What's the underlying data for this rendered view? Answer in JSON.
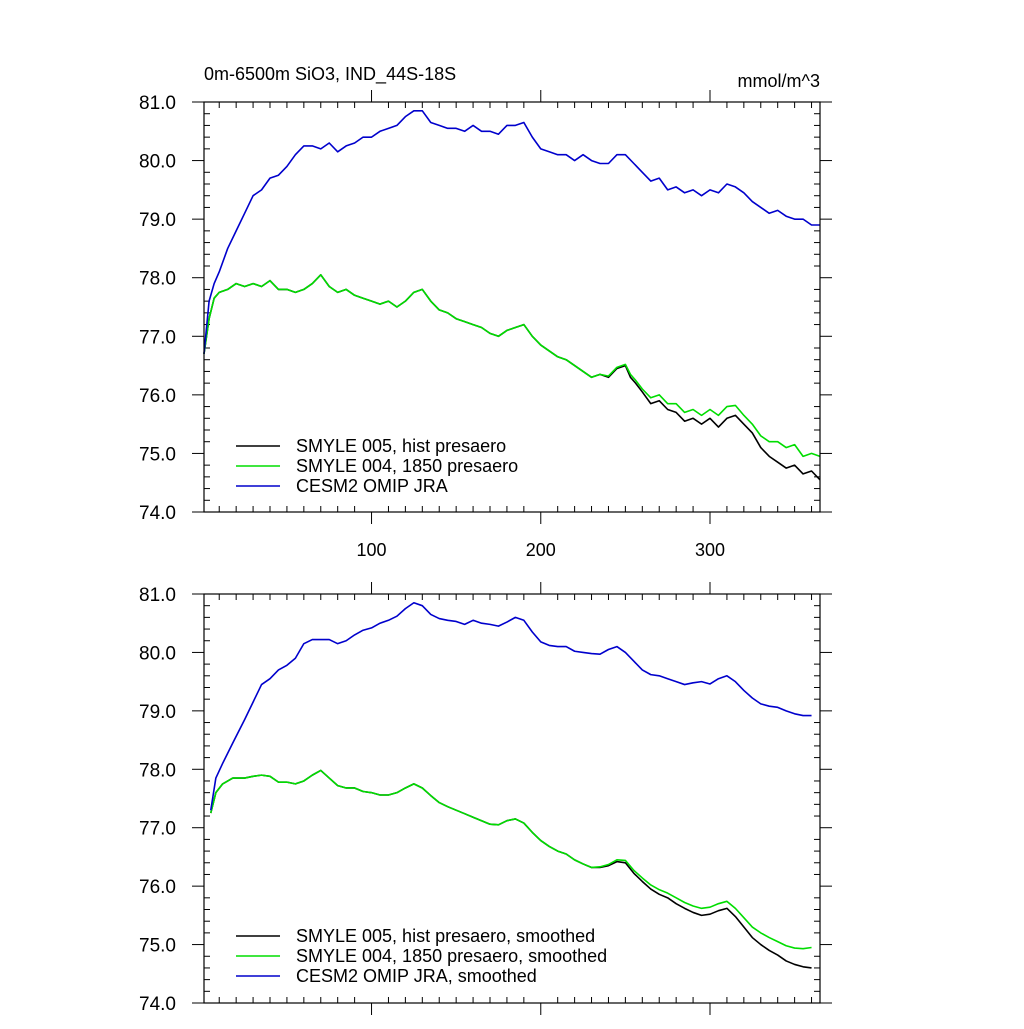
{
  "chart_data": [
    {
      "type": "line",
      "title": "0m-6500m SiO3, IND_44S-18S",
      "units": "mmol/m^3",
      "xlim": [
        1,
        365
      ],
      "ylim": [
        74.0,
        81.0
      ],
      "x_ticks": [
        100,
        200,
        300
      ],
      "y_ticks": [
        "74.0",
        "75.0",
        "76.0",
        "77.0",
        "78.0",
        "79.0",
        "80.0",
        "81.0"
      ],
      "legend_position": "bottom-left",
      "series": [
        {
          "name": "SMYLE 005, hist presaero",
          "color": "#000000",
          "x": [
            1,
            4,
            7,
            10,
            15,
            20,
            25,
            30,
            35,
            40,
            45,
            50,
            55,
            60,
            65,
            70,
            75,
            80,
            85,
            90,
            95,
            100,
            105,
            110,
            115,
            120,
            125,
            130,
            135,
            140,
            145,
            150,
            155,
            160,
            165,
            170,
            175,
            180,
            185,
            190,
            195,
            200,
            205,
            210,
            215,
            220,
            225,
            230,
            235,
            240,
            245,
            250,
            253,
            256,
            260,
            265,
            270,
            275,
            280,
            285,
            290,
            295,
            300,
            305,
            310,
            315,
            320,
            325,
            330,
            335,
            340,
            345,
            350,
            355,
            360,
            365
          ],
          "y": [
            76.7,
            77.3,
            77.65,
            77.75,
            77.8,
            77.9,
            77.85,
            77.9,
            77.85,
            77.95,
            77.8,
            77.8,
            77.75,
            77.8,
            77.9,
            78.05,
            77.85,
            77.75,
            77.8,
            77.7,
            77.65,
            77.6,
            77.55,
            77.6,
            77.5,
            77.6,
            77.75,
            77.8,
            77.6,
            77.45,
            77.4,
            77.3,
            77.25,
            77.2,
            77.15,
            77.05,
            77.0,
            77.1,
            77.15,
            77.2,
            77.0,
            76.85,
            76.75,
            76.65,
            76.6,
            76.5,
            76.4,
            76.3,
            76.35,
            76.3,
            76.45,
            76.5,
            76.3,
            76.2,
            76.05,
            75.85,
            75.9,
            75.75,
            75.7,
            75.55,
            75.6,
            75.5,
            75.6,
            75.45,
            75.6,
            75.65,
            75.5,
            75.35,
            75.1,
            74.95,
            74.85,
            74.75,
            74.8,
            74.65,
            74.7,
            74.55
          ]
        },
        {
          "name": "SMYLE 004, 1850 presaero",
          "color": "#00dd00",
          "x": [
            1,
            4,
            7,
            10,
            15,
            20,
            25,
            30,
            35,
            40,
            45,
            50,
            55,
            60,
            65,
            70,
            75,
            80,
            85,
            90,
            95,
            100,
            105,
            110,
            115,
            120,
            125,
            130,
            135,
            140,
            145,
            150,
            155,
            160,
            165,
            170,
            175,
            180,
            185,
            190,
            195,
            200,
            205,
            210,
            215,
            220,
            225,
            230,
            235,
            240,
            245,
            250,
            253,
            256,
            260,
            265,
            270,
            275,
            280,
            285,
            290,
            295,
            300,
            305,
            310,
            315,
            320,
            325,
            330,
            335,
            340,
            345,
            350,
            355,
            360,
            365
          ],
          "y": [
            76.7,
            77.3,
            77.65,
            77.75,
            77.8,
            77.9,
            77.85,
            77.9,
            77.85,
            77.95,
            77.8,
            77.8,
            77.75,
            77.8,
            77.9,
            78.05,
            77.85,
            77.75,
            77.8,
            77.7,
            77.65,
            77.6,
            77.55,
            77.6,
            77.5,
            77.6,
            77.75,
            77.8,
            77.6,
            77.45,
            77.4,
            77.3,
            77.25,
            77.2,
            77.15,
            77.05,
            77.0,
            77.1,
            77.15,
            77.2,
            77.0,
            76.85,
            76.75,
            76.65,
            76.6,
            76.5,
            76.4,
            76.3,
            76.35,
            76.32,
            76.47,
            76.52,
            76.35,
            76.25,
            76.1,
            75.95,
            76.0,
            75.85,
            75.85,
            75.7,
            75.75,
            75.65,
            75.75,
            75.65,
            75.8,
            75.82,
            75.65,
            75.5,
            75.3,
            75.2,
            75.2,
            75.1,
            75.15,
            74.95,
            75.0,
            74.95
          ]
        },
        {
          "name": "CESM2 OMIP JRA",
          "color": "#0000cc",
          "x": [
            1,
            4,
            7,
            10,
            15,
            20,
            25,
            30,
            35,
            40,
            45,
            50,
            55,
            60,
            65,
            70,
            75,
            80,
            85,
            90,
            95,
            100,
            105,
            110,
            115,
            120,
            125,
            130,
            135,
            140,
            145,
            150,
            155,
            160,
            165,
            170,
            175,
            180,
            185,
            190,
            195,
            200,
            205,
            210,
            215,
            220,
            225,
            230,
            235,
            240,
            245,
            250,
            255,
            260,
            265,
            270,
            275,
            280,
            285,
            290,
            295,
            300,
            305,
            310,
            315,
            320,
            325,
            330,
            335,
            340,
            345,
            350,
            355,
            360,
            365
          ],
          "y": [
            76.7,
            77.6,
            77.9,
            78.1,
            78.5,
            78.8,
            79.1,
            79.4,
            79.5,
            79.7,
            79.75,
            79.9,
            80.1,
            80.25,
            80.25,
            80.2,
            80.3,
            80.15,
            80.25,
            80.3,
            80.4,
            80.4,
            80.5,
            80.55,
            80.6,
            80.75,
            80.85,
            80.85,
            80.65,
            80.6,
            80.55,
            80.55,
            80.5,
            80.6,
            80.5,
            80.5,
            80.45,
            80.6,
            80.6,
            80.65,
            80.4,
            80.2,
            80.15,
            80.1,
            80.1,
            80.0,
            80.1,
            80.0,
            79.95,
            79.95,
            80.1,
            80.1,
            79.95,
            79.8,
            79.65,
            79.7,
            79.5,
            79.55,
            79.45,
            79.5,
            79.4,
            79.5,
            79.45,
            79.6,
            79.55,
            79.45,
            79.3,
            79.2,
            79.1,
            79.15,
            79.05,
            79.0,
            79.0,
            78.9,
            78.9
          ]
        }
      ]
    },
    {
      "type": "line",
      "xlim": [
        1,
        365
      ],
      "ylim": [
        74.0,
        81.0
      ],
      "x_ticks": [
        100,
        200,
        300
      ],
      "y_ticks": [
        "74.0",
        "75.0",
        "76.0",
        "77.0",
        "78.0",
        "79.0",
        "80.0",
        "81.0"
      ],
      "legend_position": "bottom-left",
      "series": [
        {
          "name": "SMYLE 005, hist presaero, smoothed",
          "color": "#000000",
          "x": [
            5,
            8,
            12,
            18,
            25,
            30,
            35,
            40,
            45,
            50,
            55,
            60,
            65,
            70,
            75,
            80,
            85,
            90,
            95,
            100,
            105,
            110,
            115,
            120,
            125,
            130,
            135,
            140,
            145,
            150,
            155,
            160,
            165,
            170,
            175,
            180,
            185,
            190,
            195,
            200,
            205,
            210,
            215,
            220,
            225,
            230,
            235,
            240,
            245,
            250,
            255,
            260,
            265,
            270,
            275,
            280,
            285,
            290,
            295,
            300,
            305,
            310,
            315,
            320,
            325,
            330,
            335,
            340,
            345,
            350,
            355,
            360
          ],
          "y": [
            77.25,
            77.6,
            77.75,
            77.85,
            77.85,
            77.88,
            77.9,
            77.88,
            77.78,
            77.78,
            77.75,
            77.8,
            77.9,
            77.98,
            77.85,
            77.72,
            77.68,
            77.68,
            77.62,
            77.6,
            77.56,
            77.56,
            77.6,
            77.68,
            77.75,
            77.68,
            77.55,
            77.43,
            77.36,
            77.3,
            77.24,
            77.18,
            77.12,
            77.06,
            77.05,
            77.12,
            77.15,
            77.08,
            76.92,
            76.78,
            76.68,
            76.6,
            76.55,
            76.45,
            76.38,
            76.32,
            76.32,
            76.35,
            76.42,
            76.4,
            76.22,
            76.08,
            75.95,
            75.86,
            75.8,
            75.7,
            75.62,
            75.55,
            75.5,
            75.52,
            75.58,
            75.62,
            75.48,
            75.3,
            75.12,
            75.0,
            74.9,
            74.82,
            74.72,
            74.66,
            74.62,
            74.6
          ]
        },
        {
          "name": "SMYLE 004, 1850 presaero, smoothed",
          "color": "#00dd00",
          "x": [
            5,
            8,
            12,
            18,
            25,
            30,
            35,
            40,
            45,
            50,
            55,
            60,
            65,
            70,
            75,
            80,
            85,
            90,
            95,
            100,
            105,
            110,
            115,
            120,
            125,
            130,
            135,
            140,
            145,
            150,
            155,
            160,
            165,
            170,
            175,
            180,
            185,
            190,
            195,
            200,
            205,
            210,
            215,
            220,
            225,
            230,
            235,
            240,
            245,
            250,
            255,
            260,
            265,
            270,
            275,
            280,
            285,
            290,
            295,
            300,
            305,
            310,
            315,
            320,
            325,
            330,
            335,
            340,
            345,
            350,
            355,
            360
          ],
          "y": [
            77.25,
            77.6,
            77.75,
            77.85,
            77.85,
            77.88,
            77.9,
            77.88,
            77.78,
            77.78,
            77.75,
            77.8,
            77.9,
            77.98,
            77.85,
            77.72,
            77.68,
            77.68,
            77.62,
            77.6,
            77.56,
            77.56,
            77.6,
            77.68,
            77.75,
            77.68,
            77.55,
            77.43,
            77.36,
            77.3,
            77.24,
            77.18,
            77.12,
            77.06,
            77.05,
            77.12,
            77.15,
            77.08,
            76.92,
            76.78,
            76.68,
            76.6,
            76.55,
            76.45,
            76.38,
            76.32,
            76.33,
            76.37,
            76.45,
            76.44,
            76.27,
            76.14,
            76.02,
            75.94,
            75.88,
            75.8,
            75.72,
            75.66,
            75.62,
            75.64,
            75.7,
            75.74,
            75.62,
            75.46,
            75.3,
            75.2,
            75.12,
            75.05,
            74.98,
            74.94,
            74.93,
            74.95
          ]
        },
        {
          "name": "CESM2 OMIP JRA, smoothed",
          "color": "#0000cc",
          "x": [
            5,
            8,
            12,
            18,
            25,
            30,
            35,
            40,
            45,
            50,
            55,
            60,
            65,
            70,
            75,
            80,
            85,
            90,
            95,
            100,
            105,
            110,
            115,
            120,
            125,
            130,
            135,
            140,
            145,
            150,
            155,
            160,
            165,
            170,
            175,
            180,
            185,
            190,
            195,
            200,
            205,
            210,
            215,
            220,
            225,
            230,
            235,
            240,
            245,
            250,
            255,
            260,
            265,
            270,
            275,
            280,
            285,
            290,
            295,
            300,
            305,
            310,
            315,
            320,
            325,
            330,
            335,
            340,
            345,
            350,
            355,
            360
          ],
          "y": [
            77.3,
            77.85,
            78.1,
            78.45,
            78.85,
            79.15,
            79.45,
            79.55,
            79.7,
            79.78,
            79.9,
            80.15,
            80.22,
            80.22,
            80.22,
            80.15,
            80.2,
            80.3,
            80.38,
            80.42,
            80.5,
            80.55,
            80.62,
            80.75,
            80.85,
            80.8,
            80.65,
            80.58,
            80.55,
            80.53,
            80.48,
            80.55,
            80.5,
            80.48,
            80.45,
            80.52,
            80.6,
            80.55,
            80.35,
            80.18,
            80.12,
            80.1,
            80.1,
            80.02,
            80.0,
            79.98,
            79.97,
            80.05,
            80.1,
            80.0,
            79.85,
            79.7,
            79.62,
            79.6,
            79.55,
            79.5,
            79.45,
            79.48,
            79.5,
            79.46,
            79.55,
            79.6,
            79.5,
            79.35,
            79.22,
            79.12,
            79.08,
            79.06,
            79.0,
            78.95,
            78.92,
            78.92
          ]
        }
      ]
    }
  ]
}
